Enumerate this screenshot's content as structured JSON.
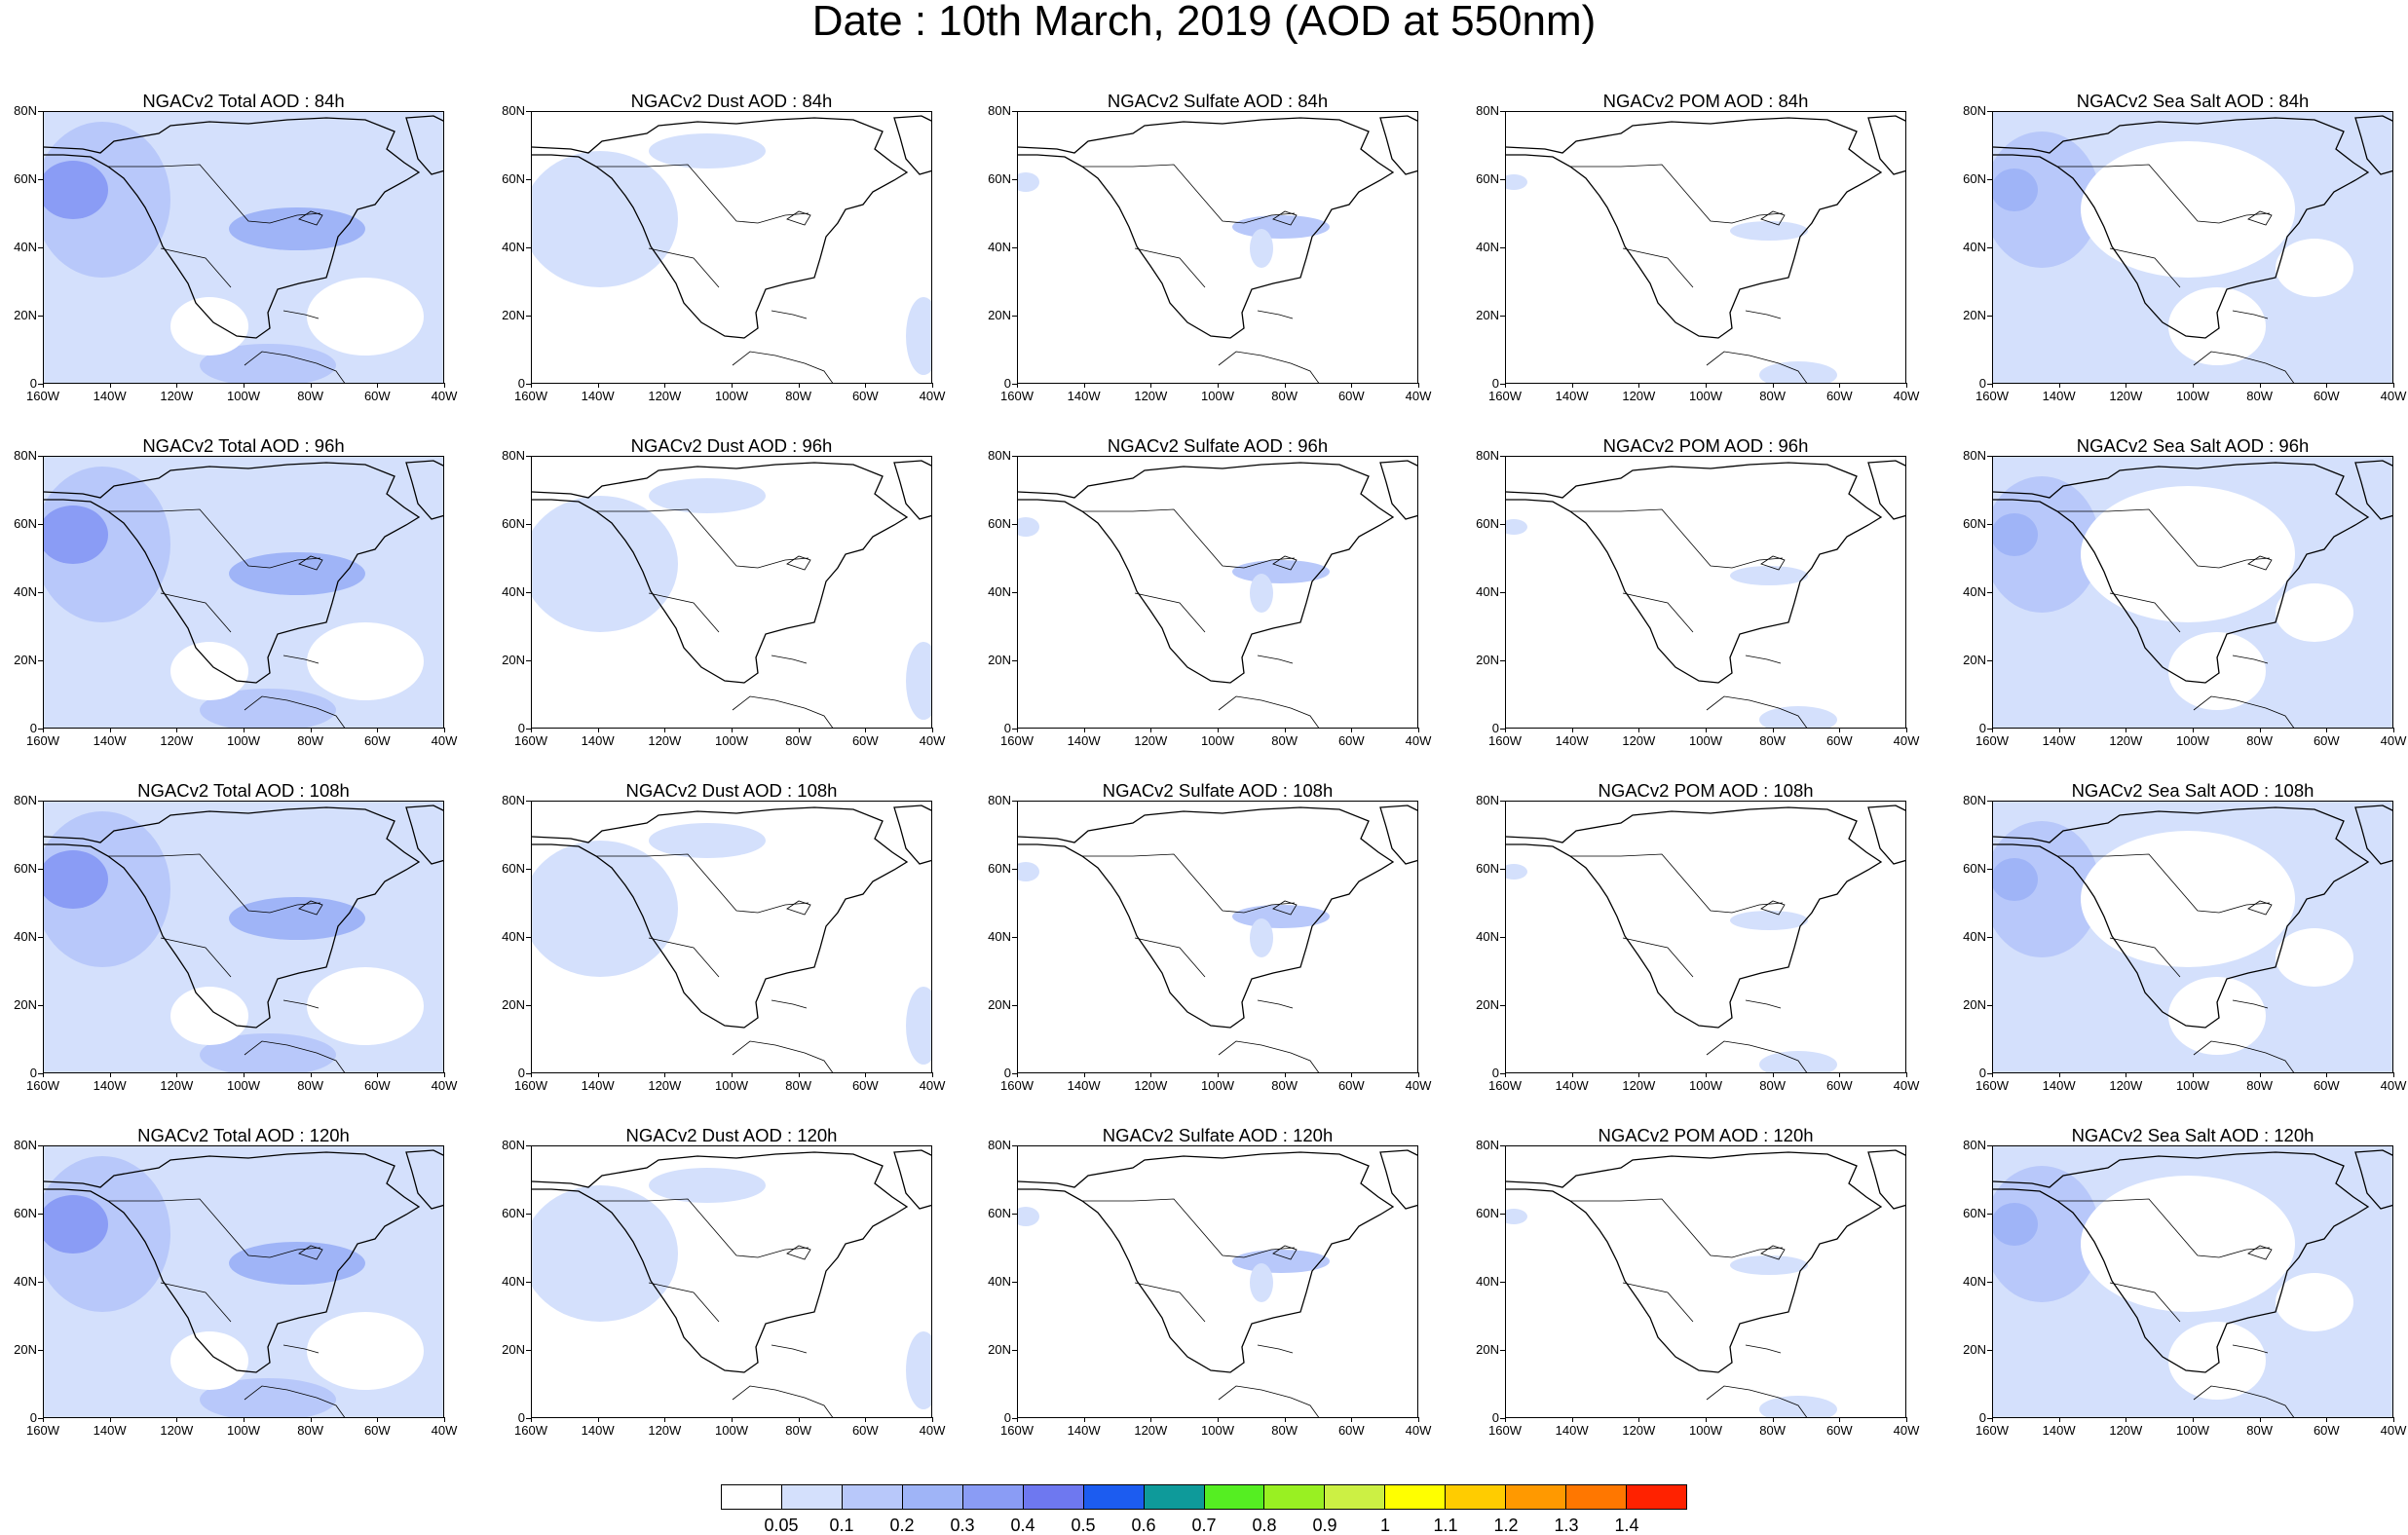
{
  "title": "Date : 10th March, 2019 (AOD at 550nm)",
  "y_ticks": [
    "80N",
    "60N",
    "40N",
    "20N",
    "0"
  ],
  "x_ticks": [
    "160W",
    "140W",
    "120W",
    "100W",
    "80W",
    "60W",
    "40W"
  ],
  "panels": [
    {
      "title": "NGACv2 Total AOD : 84h",
      "species": "total",
      "forecast_hour": 84
    },
    {
      "title": "NGACv2 Dust AOD : 84h",
      "species": "dust",
      "forecast_hour": 84
    },
    {
      "title": "NGACv2 Sulfate AOD : 84h",
      "species": "sulfate",
      "forecast_hour": 84
    },
    {
      "title": "NGACv2 POM AOD : 84h",
      "species": "pom",
      "forecast_hour": 84
    },
    {
      "title": "NGACv2 Sea Salt AOD : 84h",
      "species": "seasalt",
      "forecast_hour": 84
    },
    {
      "title": "NGACv2 Total AOD : 96h",
      "species": "total",
      "forecast_hour": 96
    },
    {
      "title": "NGACv2 Dust AOD : 96h",
      "species": "dust",
      "forecast_hour": 96
    },
    {
      "title": "NGACv2 Sulfate AOD : 96h",
      "species": "sulfate",
      "forecast_hour": 96
    },
    {
      "title": "NGACv2 POM AOD : 96h",
      "species": "pom",
      "forecast_hour": 96
    },
    {
      "title": "NGACv2 Sea Salt AOD : 96h",
      "species": "seasalt",
      "forecast_hour": 96
    },
    {
      "title": "NGACv2 Total AOD : 108h",
      "species": "total",
      "forecast_hour": 108
    },
    {
      "title": "NGACv2 Dust AOD : 108h",
      "species": "dust",
      "forecast_hour": 108
    },
    {
      "title": "NGACv2 Sulfate AOD : 108h",
      "species": "sulfate",
      "forecast_hour": 108
    },
    {
      "title": "NGACv2 POM AOD : 108h",
      "species": "pom",
      "forecast_hour": 108
    },
    {
      "title": "NGACv2 Sea Salt AOD : 108h",
      "species": "seasalt",
      "forecast_hour": 108
    },
    {
      "title": "NGACv2 Total AOD : 120h",
      "species": "total",
      "forecast_hour": 120
    },
    {
      "title": "NGACv2 Dust AOD : 120h",
      "species": "dust",
      "forecast_hour": 120
    },
    {
      "title": "NGACv2 Sulfate AOD : 120h",
      "species": "sulfate",
      "forecast_hour": 120
    },
    {
      "title": "NGACv2 POM AOD : 120h",
      "species": "pom",
      "forecast_hour": 120
    },
    {
      "title": "NGACv2 Sea Salt  AOD : 120h",
      "species": "seasalt",
      "forecast_hour": 120
    }
  ],
  "colorbar": {
    "labels": [
      "0.05",
      "0.1",
      "0.2",
      "0.3",
      "0.4",
      "0.5",
      "0.6",
      "0.7",
      "0.8",
      "0.9",
      "1",
      "1.1",
      "1.2",
      "1.3",
      "1.4"
    ],
    "colors": [
      "#ffffff",
      "#d4e0fc",
      "#b8c8fa",
      "#9fb4f7",
      "#8a9cf5",
      "#6e78f0",
      "#1c5cf0",
      "#0e9a9a",
      "#55ee22",
      "#99f022",
      "#ccf044",
      "#ffff00",
      "#ffcc00",
      "#ff9900",
      "#ff7700",
      "#ff2200"
    ]
  }
}
